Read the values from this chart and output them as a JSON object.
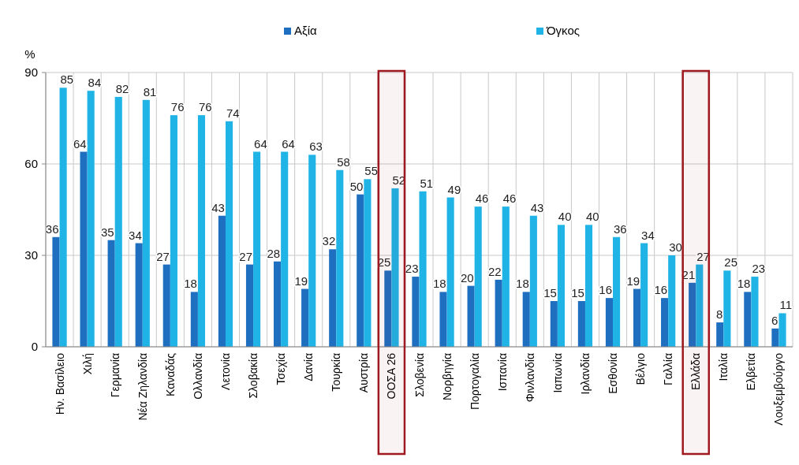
{
  "chart_data": {
    "type": "bar",
    "ylabel": "%",
    "categories": [
      "Ην. Βασίλειο",
      "Χιλή",
      "Γερμανία",
      "Νέα Ζηλανδία",
      "Καναδάς",
      "Ολλανδία",
      "Λετονία",
      "Σλοβακία",
      "Τσεχία",
      "Δανία",
      "Τουρκία",
      "Αυστρία",
      "ΟΟΣΑ 26",
      "Σλοβενία",
      "Νορβηγία",
      "Πορτογαλία",
      "Ισπανία",
      "Φινλανδία",
      "Ιαπωνία",
      "Ιρλανδία",
      "Εσθονία",
      "Βέλγιο",
      "Γαλλία",
      "Ελλάδα",
      "Ιταλία",
      "Ελβετία",
      "Λουξεμβούργο"
    ],
    "series": [
      {
        "name": "Αξία",
        "color": "#1f6fc0",
        "values": [
          36,
          64,
          35,
          34,
          27,
          18,
          43,
          27,
          28,
          19,
          32,
          50,
          25,
          23,
          18,
          20,
          22,
          18,
          15,
          15,
          16,
          19,
          16,
          21,
          8,
          18,
          6
        ]
      },
      {
        "name": "Όγκος",
        "color": "#1fb3e6",
        "values": [
          85,
          84,
          82,
          81,
          76,
          76,
          74,
          64,
          64,
          63,
          58,
          55,
          52,
          51,
          49,
          46,
          46,
          43,
          40,
          40,
          36,
          34,
          30,
          27,
          25,
          23,
          11
        ]
      }
    ],
    "ylim": [
      0,
      90
    ],
    "yticks": [
      0,
      30,
      60,
      90
    ],
    "grid": true,
    "legend": "top",
    "data_labels": true,
    "bands": [
      {
        "axis": "x",
        "from": "ΟΟΣΑ 26",
        "to": "ΟΟΣΑ 26",
        "color": "#a01820"
      },
      {
        "axis": "x",
        "from": "Ελλάδα",
        "to": "Ελλάδα",
        "color": "#a01820"
      }
    ]
  }
}
